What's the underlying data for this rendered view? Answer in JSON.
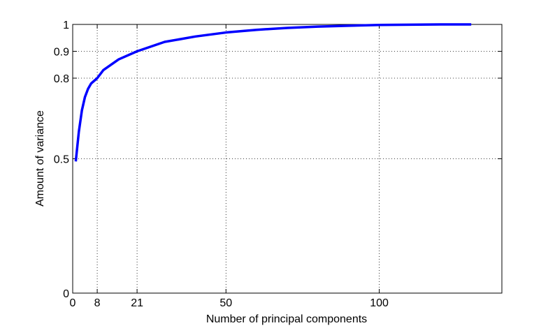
{
  "chart_data": {
    "type": "line",
    "xlabel": "Number of principal components",
    "ylabel": "Amount of variance",
    "x": [
      1,
      2,
      3,
      4,
      5,
      6,
      8,
      10,
      15,
      21,
      30,
      40,
      50,
      60,
      70,
      80,
      90,
      100,
      110,
      120,
      130
    ],
    "series": [
      {
        "color": "#0000ff",
        "values": [
          0.49,
          0.6,
          0.68,
          0.73,
          0.76,
          0.78,
          0.8,
          0.83,
          0.87,
          0.9,
          0.935,
          0.955,
          0.97,
          0.98,
          0.987,
          0.992,
          0.995,
          0.998,
          0.999,
          1,
          1
        ]
      }
    ],
    "xlim": [
      0,
      140
    ],
    "ylim": [
      0,
      1
    ],
    "xticks": [
      0,
      8,
      21,
      50,
      100
    ],
    "yticks": [
      0,
      0.5,
      0.8,
      0.9,
      1
    ],
    "grid": true
  }
}
